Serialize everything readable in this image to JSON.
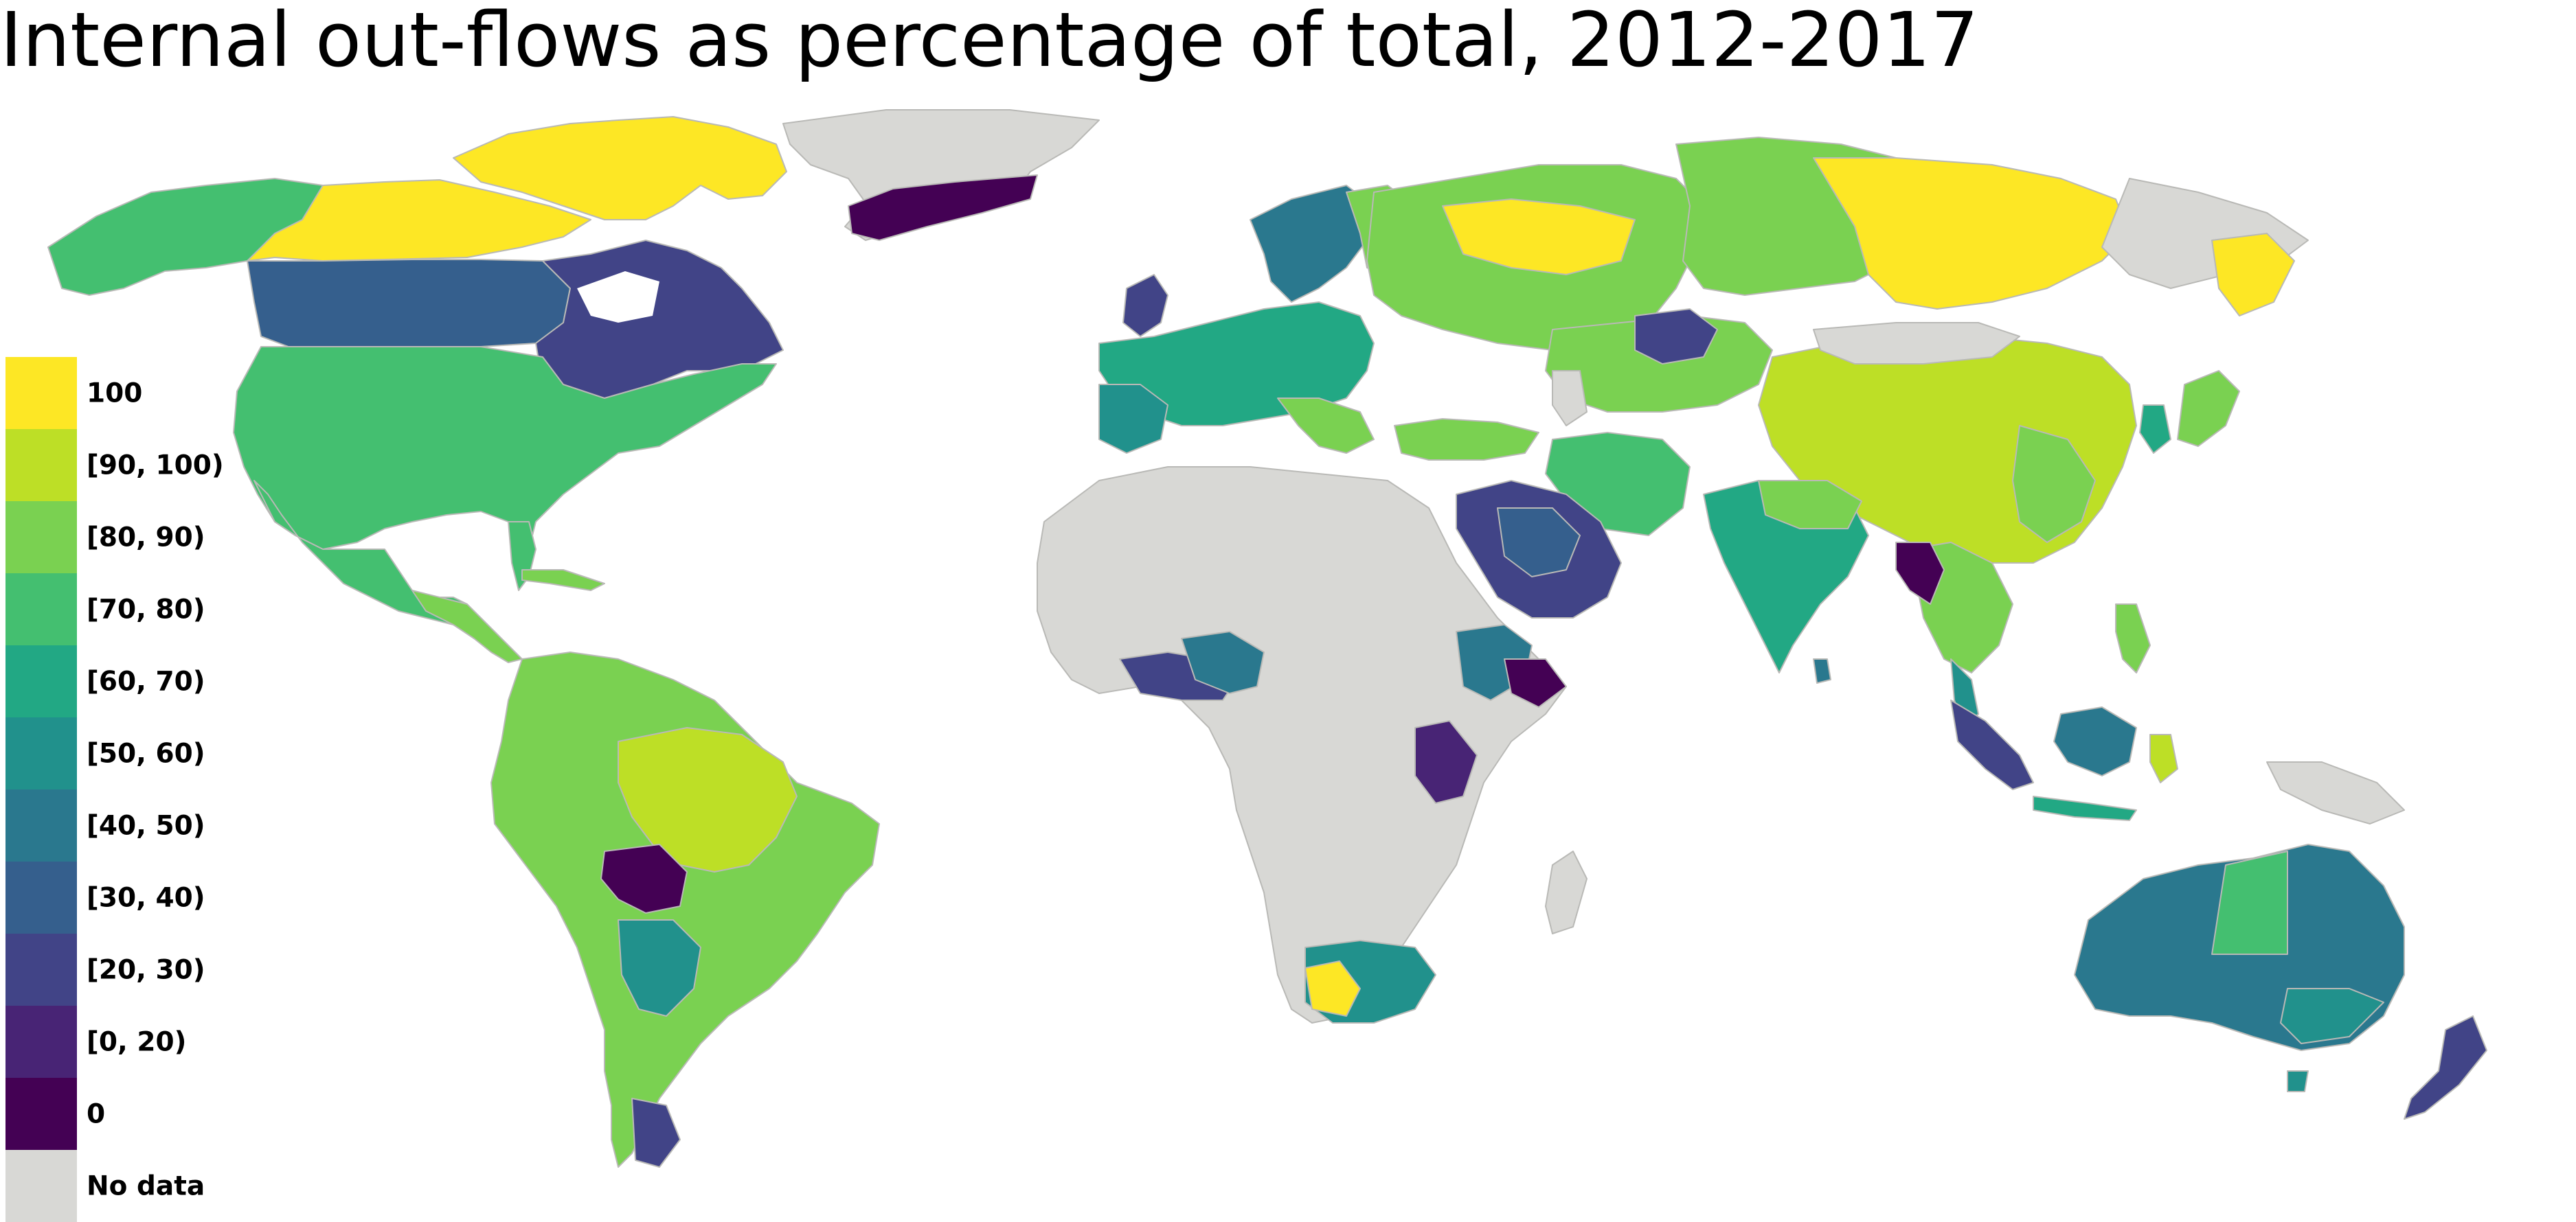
{
  "title": "Internal out-flows as percentage of total, 2012-2017",
  "colors": {
    "nodata": "#d8d8d5",
    "border": "#b9b9b6",
    "ocean": "#ffffff"
  },
  "legend": {
    "items": [
      {
        "label": "100",
        "color": "#fde725"
      },
      {
        "label": "[90, 100)",
        "color": "#bddf26"
      },
      {
        "label": "[80, 90)",
        "color": "#7ad151"
      },
      {
        "label": "[70, 80)",
        "color": "#44bf70"
      },
      {
        "label": "[60, 70)",
        "color": "#22a884"
      },
      {
        "label": "[50, 60)",
        "color": "#21918c"
      },
      {
        "label": "[40, 50)",
        "color": "#2a788e"
      },
      {
        "label": "[30, 40)",
        "color": "#355f8d"
      },
      {
        "label": "[20, 30)",
        "color": "#414487"
      },
      {
        "label": "[0, 20)",
        "color": "#482475"
      },
      {
        "label": "0",
        "color": "#440154"
      },
      {
        "label": "No data",
        "color": "#d8d8d5"
      }
    ]
  }
}
